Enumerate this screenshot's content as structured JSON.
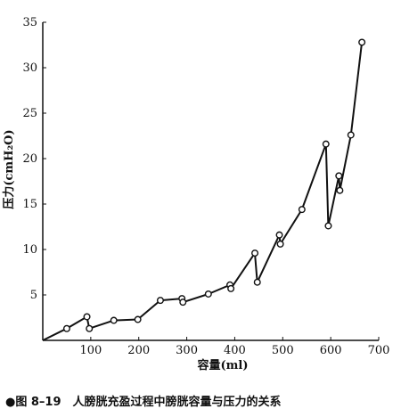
{
  "chart_data": {
    "type": "line",
    "xlabel": "容量(ml)",
    "ylabel": "压力(cmH₂O)",
    "xlim": [
      0,
      700
    ],
    "ylim": [
      0,
      35
    ],
    "x_ticks": [
      "100",
      "200",
      "300",
      "400",
      "500",
      "600",
      "700"
    ],
    "y_ticks": [
      "5",
      "10",
      "15",
      "20",
      "25",
      "30",
      "35"
    ],
    "grid": false,
    "legend": "none",
    "series": [
      {
        "color": "#111111",
        "markers": "open-circle",
        "points": [
          [
            0,
            0
          ],
          [
            50,
            1.3
          ],
          [
            92,
            2.6
          ],
          [
            97,
            1.3
          ],
          [
            148,
            2.2
          ],
          [
            198,
            2.3
          ],
          [
            245,
            4.4
          ],
          [
            290,
            4.6
          ],
          [
            292,
            4.2
          ],
          [
            345,
            5.1
          ],
          [
            390,
            6.1
          ],
          [
            392,
            5.7
          ],
          [
            442,
            9.6
          ],
          [
            447,
            6.4
          ],
          [
            493,
            11.6
          ],
          [
            495,
            10.6
          ],
          [
            540,
            14.4
          ],
          [
            590,
            21.6
          ],
          [
            595,
            12.6
          ],
          [
            617,
            18.1
          ],
          [
            619,
            16.5
          ],
          [
            642,
            22.6
          ],
          [
            665,
            32.8
          ]
        ]
      }
    ]
  },
  "caption": "●图 8–19　人膀胱充盈过程中膀胱容量与压力的关系"
}
